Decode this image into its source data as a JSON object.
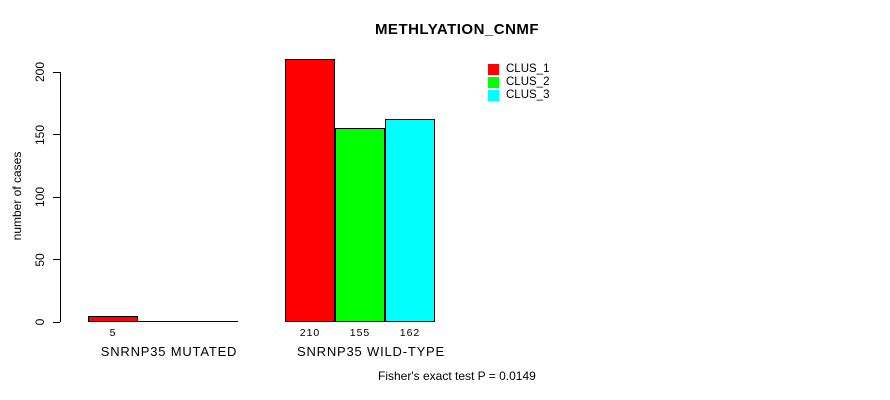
{
  "chart_data": {
    "type": "bar",
    "title": "METHLYATION_CNMF",
    "ylabel": "number of cases",
    "xlabel": "",
    "ylim": [
      0,
      200
    ],
    "yticks": [
      0,
      50,
      100,
      150,
      200
    ],
    "grid": false,
    "legend_position": "top-right",
    "legend": [
      {
        "label": "CLUS_1",
        "color": "#ff0000"
      },
      {
        "label": "CLUS_2",
        "color": "#00ff00"
      },
      {
        "label": "CLUS_3",
        "color": "#00ffff"
      }
    ],
    "categories": [
      "SNRNP35 MUTATED",
      "SNRNP35 WILD-TYPE"
    ],
    "series": [
      {
        "name": "CLUS_1",
        "values": [
          5,
          210
        ]
      },
      {
        "name": "CLUS_2",
        "values": [
          0,
          155
        ]
      },
      {
        "name": "CLUS_3",
        "values": [
          0,
          162
        ]
      }
    ],
    "groups": [
      {
        "label": "SNRNP35 MUTATED",
        "values": [
          5,
          0,
          0
        ]
      },
      {
        "label": "SNRNP35 WILD-TYPE",
        "values": [
          210,
          155,
          162
        ]
      }
    ],
    "bar_border_color": "#000000",
    "annotation": "Fisher's exact test P = 0.0149"
  }
}
